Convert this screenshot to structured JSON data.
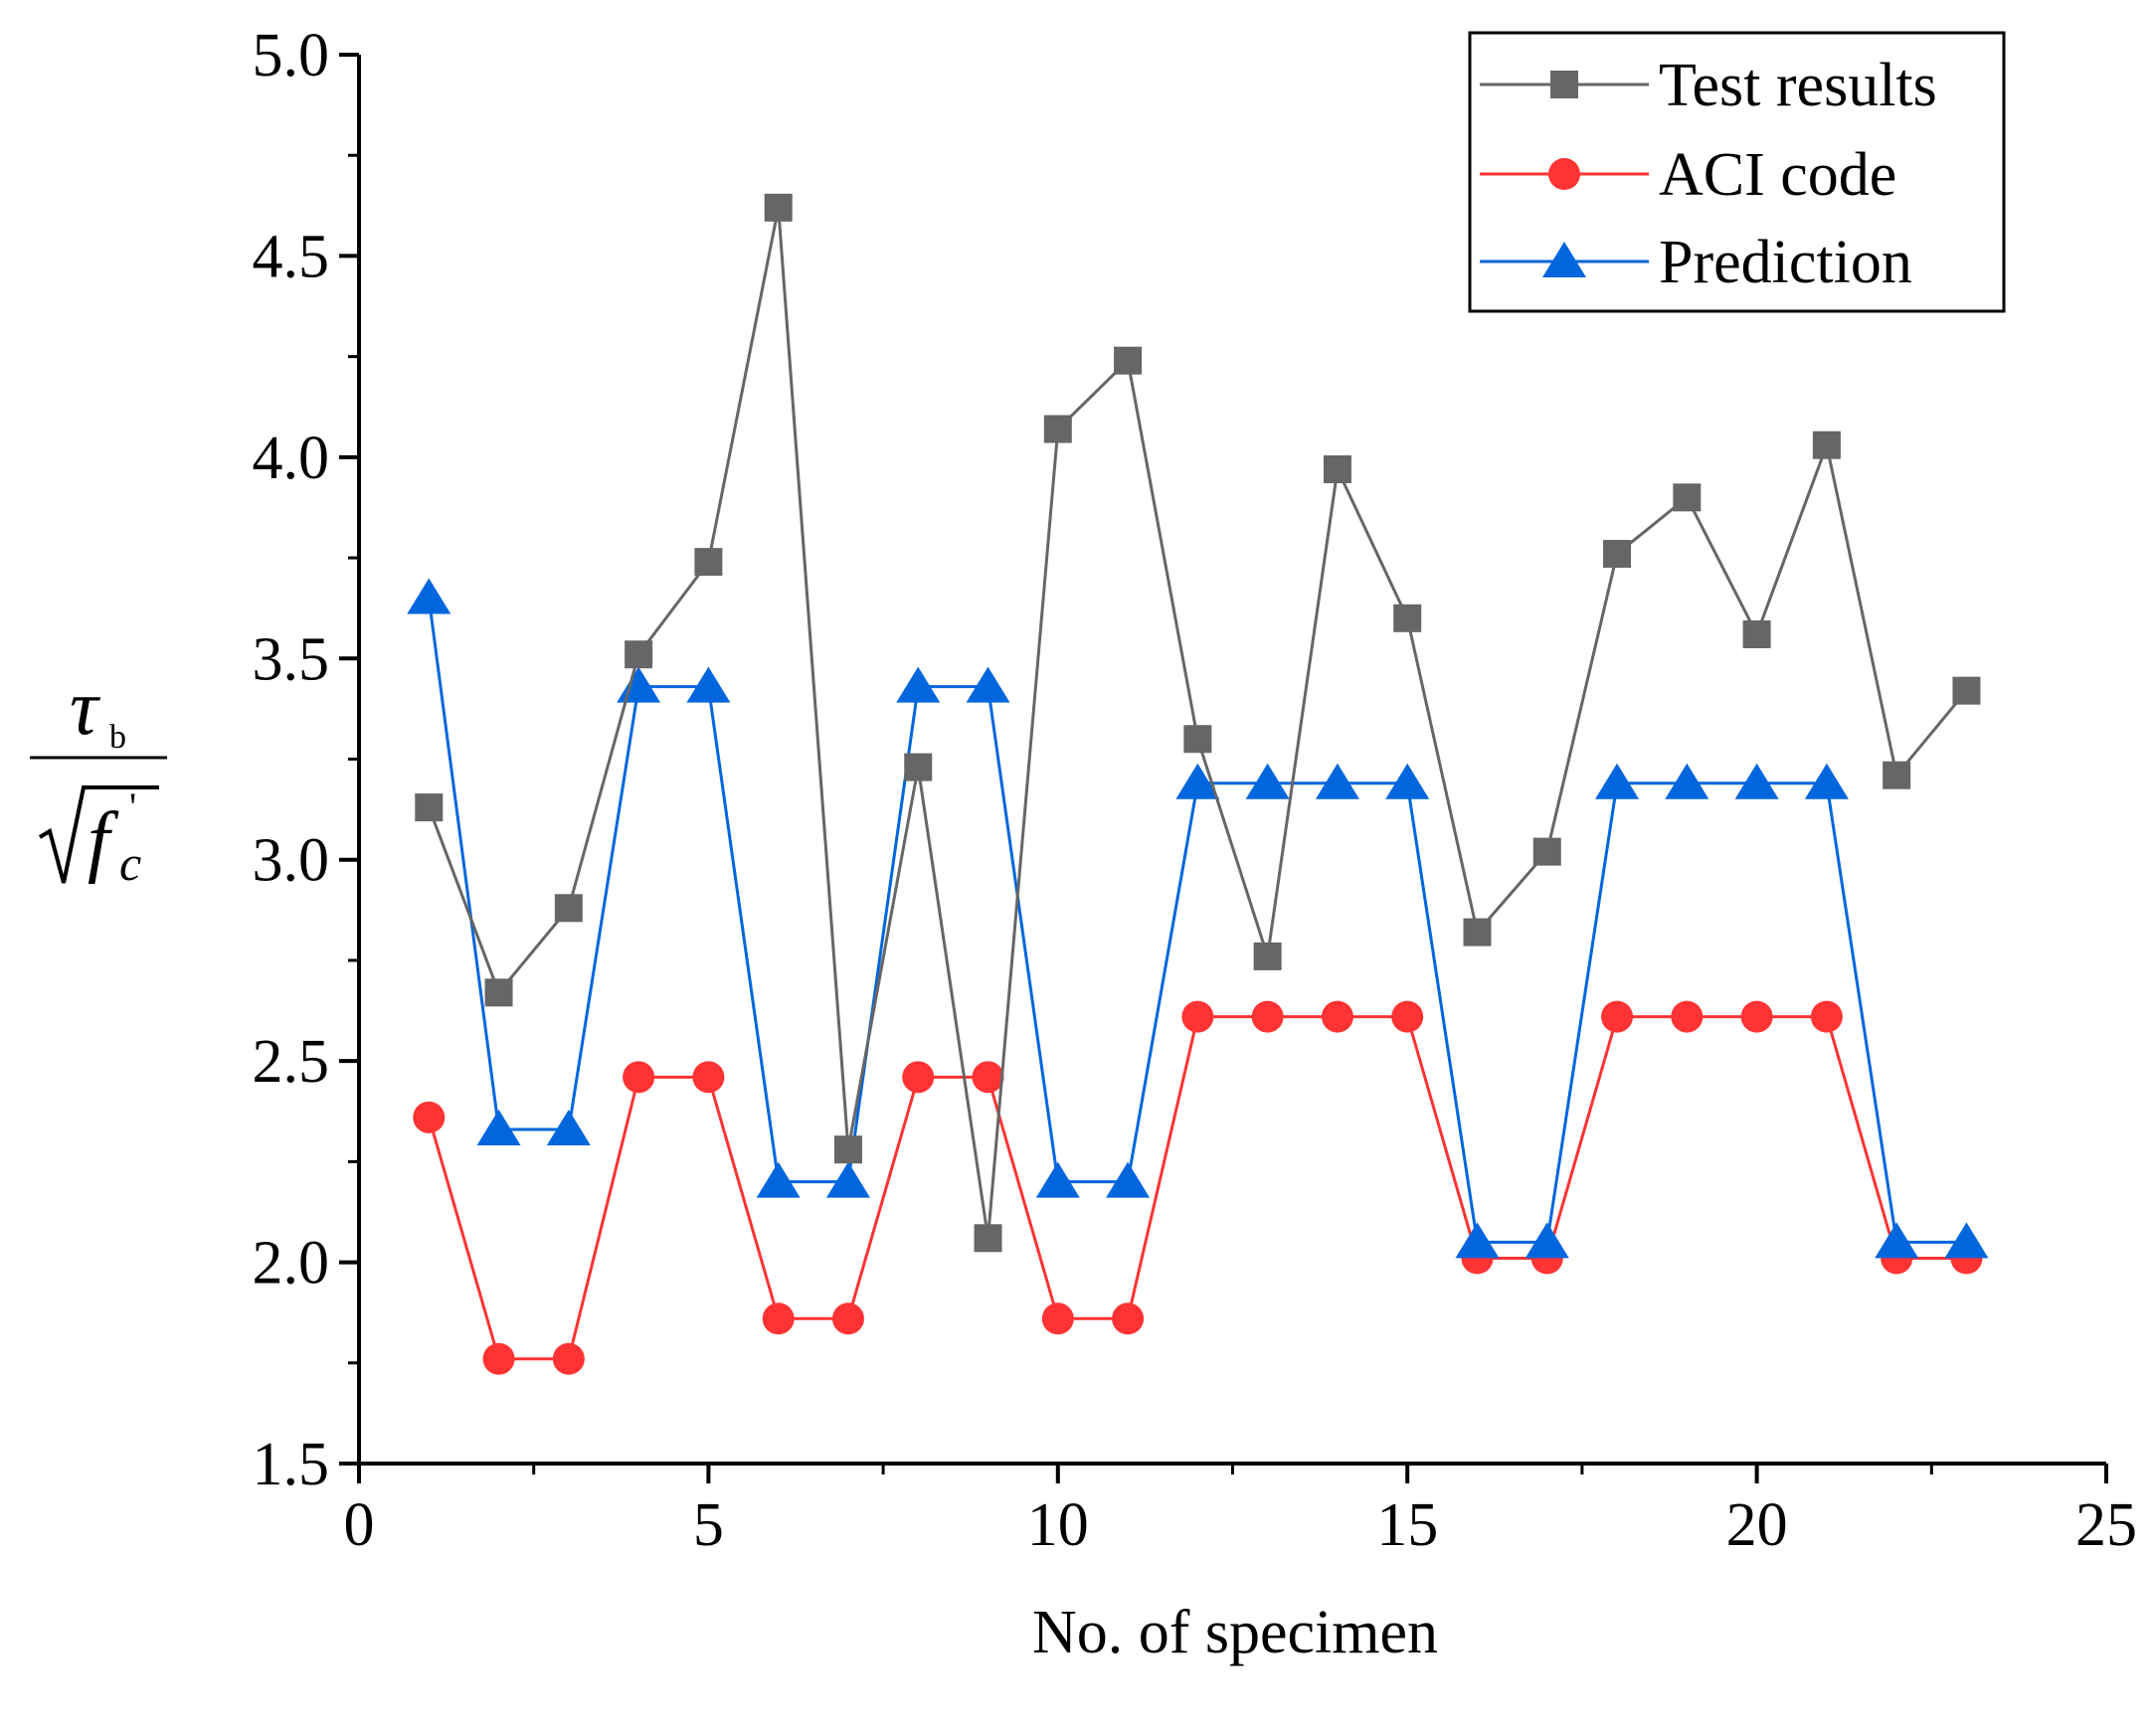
{
  "chart_data": {
    "type": "line",
    "title": "",
    "xlabel": "No. of specimen",
    "ylabel": {
      "numerator_symbol": "τ",
      "numerator_subscript": "b",
      "denominator_symbol": "f",
      "denominator_subscript": "c",
      "denominator_superscript": "'",
      "radical": "√"
    },
    "xlim": [
      0,
      25
    ],
    "ylim": [
      1.5,
      5.0
    ],
    "xticks": [
      "0",
      "5",
      "10",
      "15",
      "20",
      "25"
    ],
    "yticks": [
      "1.5",
      "2.0",
      "2.5",
      "3.0",
      "3.5",
      "4.0",
      "4.5",
      "5.0"
    ],
    "legend_position": "top-right",
    "x": [
      1,
      2,
      3,
      4,
      5,
      6,
      7,
      8,
      9,
      10,
      11,
      12,
      13,
      14,
      15,
      16,
      17,
      18,
      19,
      20,
      21,
      22,
      23
    ],
    "series": [
      {
        "name": "Test results",
        "color": "#666666",
        "marker": "square",
        "values": [
          3.13,
          2.67,
          2.88,
          3.51,
          3.74,
          4.62,
          2.28,
          3.23,
          2.06,
          4.07,
          4.24,
          3.3,
          2.76,
          3.97,
          3.6,
          2.82,
          3.02,
          3.76,
          3.9,
          3.56,
          4.03,
          3.21,
          3.42
        ]
      },
      {
        "name": "ACI code",
        "color": "#ff3333",
        "marker": "circle",
        "values": [
          2.36,
          1.76,
          1.76,
          2.46,
          2.46,
          1.86,
          1.86,
          2.46,
          2.46,
          1.86,
          1.86,
          2.61,
          2.61,
          2.61,
          2.61,
          2.01,
          2.01,
          2.61,
          2.61,
          2.61,
          2.61,
          2.01,
          2.01
        ]
      },
      {
        "name": "Prediction",
        "color": "#0066dd",
        "marker": "triangle",
        "values": [
          3.65,
          2.33,
          2.33,
          3.43,
          3.43,
          2.2,
          2.2,
          3.43,
          3.43,
          2.2,
          2.2,
          3.19,
          3.19,
          3.19,
          3.19,
          2.05,
          2.05,
          3.19,
          3.19,
          3.19,
          3.19,
          2.05,
          2.05
        ]
      }
    ]
  }
}
